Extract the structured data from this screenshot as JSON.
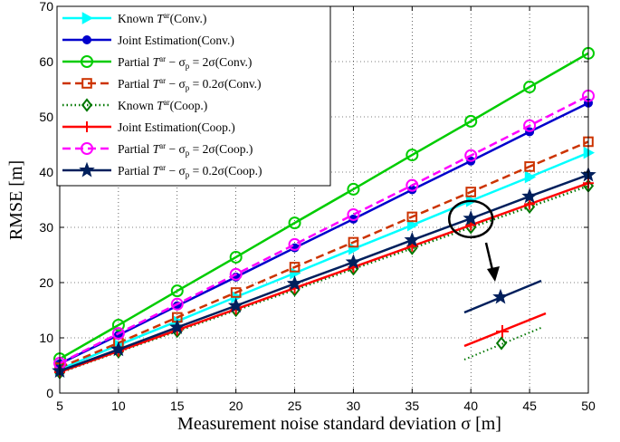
{
  "chart_data": {
    "type": "line",
    "title": "",
    "xlabel": "Measurement noise standard deviation σ [m]",
    "ylabel": "RMSE [m]",
    "x": [
      5,
      10,
      15,
      20,
      25,
      30,
      35,
      40,
      45,
      50
    ],
    "xlim": [
      5,
      50
    ],
    "ylim": [
      0,
      70
    ],
    "xticks": [
      5,
      10,
      15,
      20,
      25,
      30,
      35,
      40,
      45,
      50
    ],
    "yticks": [
      0,
      10,
      20,
      30,
      40,
      50,
      60,
      70
    ],
    "grid": true,
    "legend_position": "top-left",
    "series": [
      {
        "name": "Known T^ar(Conv.)",
        "legend_parts": [
          "Known ",
          "T",
          "ar",
          "(Conv.)"
        ],
        "color": "#00ffff",
        "marker": "triangle-right",
        "dash": "solid",
        "values": [
          4.3,
          8.7,
          13.0,
          17.4,
          21.7,
          26.1,
          30.4,
          34.8,
          39.1,
          43.5
        ]
      },
      {
        "name": "Joint Estimation(Conv.)",
        "legend_parts": [
          "Joint Estimation(Conv.)"
        ],
        "color": "#0000cc",
        "marker": "circle-filled",
        "dash": "solid",
        "values": [
          5.3,
          10.5,
          15.8,
          21.0,
          26.3,
          31.5,
          36.8,
          42.0,
          47.3,
          52.5
        ]
      },
      {
        "name": "Partial T^ar − σp = 2σ(Conv.)",
        "legend_parts": [
          "Partial ",
          "T",
          "ar",
          " − σ",
          "p",
          " = 2σ(Conv.)"
        ],
        "color": "#00cc00",
        "marker": "circle-open",
        "dash": "solid",
        "values": [
          6.2,
          12.3,
          18.5,
          24.6,
          30.8,
          36.9,
          43.1,
          49.2,
          55.4,
          61.5
        ]
      },
      {
        "name": "Partial T^ar − σp = 0.2σ(Conv.)",
        "legend_parts": [
          "Partial ",
          "T",
          "ar",
          " − σ",
          "p",
          " = 0.2σ(Conv.)"
        ],
        "color": "#cc3300",
        "marker": "square-open",
        "dash": "dashed",
        "values": [
          4.6,
          9.1,
          13.7,
          18.2,
          22.8,
          27.3,
          31.9,
          36.4,
          41.0,
          45.5
        ]
      },
      {
        "name": "Known T^ar(Coop.)",
        "legend_parts": [
          "Known ",
          "T",
          "ar",
          "(Coop.)"
        ],
        "color": "#007700",
        "marker": "diamond-open",
        "dash": "dotted",
        "values": [
          3.7,
          7.5,
          11.2,
          15.0,
          18.7,
          22.5,
          26.2,
          30.0,
          33.7,
          37.5
        ]
      },
      {
        "name": "Joint Estimation(Coop.)",
        "legend_parts": [
          "Joint Estimation(Coop.)"
        ],
        "color": "#ff0000",
        "marker": "plus",
        "dash": "solid",
        "values": [
          3.8,
          7.6,
          11.4,
          15.2,
          19.0,
          22.8,
          26.6,
          30.4,
          34.2,
          38.0
        ]
      },
      {
        "name": "Partial T^ar − σp = 2σ(Coop.)",
        "legend_parts": [
          "Partial ",
          "T",
          "ar",
          " − σ",
          "p",
          " = 2σ(Coop.)"
        ],
        "color": "#ff00ff",
        "marker": "circle-open",
        "dash": "dashed",
        "values": [
          5.4,
          10.8,
          16.1,
          21.5,
          26.9,
          32.3,
          37.6,
          43.0,
          48.4,
          53.8
        ]
      },
      {
        "name": "Partial T^ar − σp = 0.2σ(Coop.)",
        "legend_parts": [
          "Partial ",
          "T",
          "ar",
          " − σ",
          "p",
          " = 0.2σ(Coop.)"
        ],
        "color": "#001f5c",
        "marker": "star",
        "dash": "solid",
        "values": [
          4.0,
          7.9,
          11.9,
          15.8,
          19.8,
          23.7,
          27.7,
          31.6,
          35.6,
          39.5
        ]
      }
    ],
    "annotation": {
      "type": "zoom-inset",
      "zoom_center": [
        40,
        31.5
      ],
      "note": "ellipse highlights the curves near x = 40; an arrow points to an enlarged view of the Coop. curves"
    }
  }
}
